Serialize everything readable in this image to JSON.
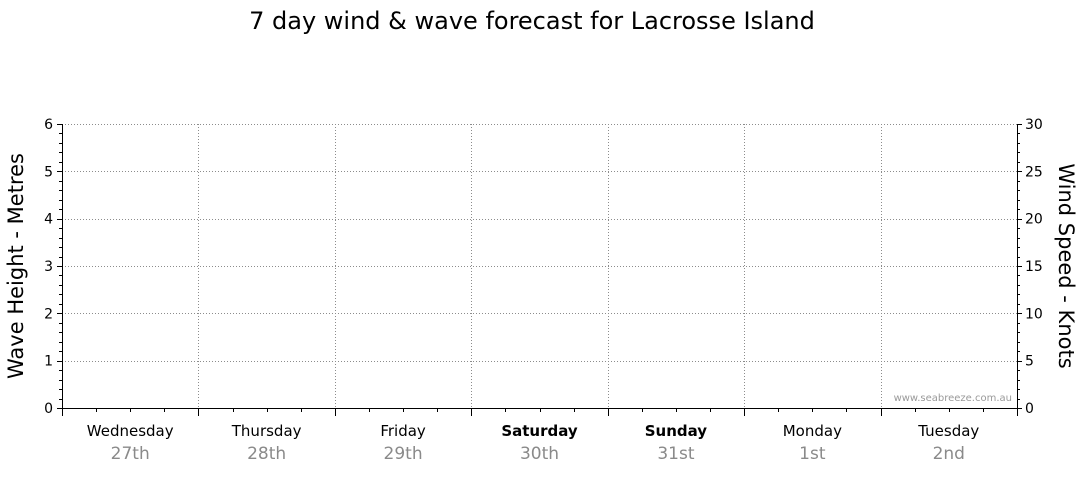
{
  "chart_data": {
    "type": "line",
    "title": "7 day wind & wave forecast for Lacrosse Island",
    "ylabel_left": "Wave Height - Metres",
    "ylabel_right": "Wind Speed - Knots",
    "ylim_left": [
      0,
      6
    ],
    "ylim_right": [
      0,
      30
    ],
    "yticks_left": [
      "0",
      "1",
      "2",
      "3",
      "4",
      "5",
      "6"
    ],
    "yticks_right": [
      "0",
      "5",
      "10",
      "15",
      "20",
      "25",
      "30"
    ],
    "grid": true,
    "watermark": "www.seabreeze.com.au",
    "days": [
      {
        "name": "Wednesday",
        "date": "27th",
        "bold": false
      },
      {
        "name": "Thursday",
        "date": "28th",
        "bold": false
      },
      {
        "name": "Friday",
        "date": "29th",
        "bold": false
      },
      {
        "name": "Saturday",
        "date": "30th",
        "bold": true
      },
      {
        "name": "Sunday",
        "date": "31st",
        "bold": true
      },
      {
        "name": "Monday",
        "date": "1st",
        "bold": false
      },
      {
        "name": "Tuesday",
        "date": "2nd",
        "bold": false
      }
    ],
    "series": []
  }
}
